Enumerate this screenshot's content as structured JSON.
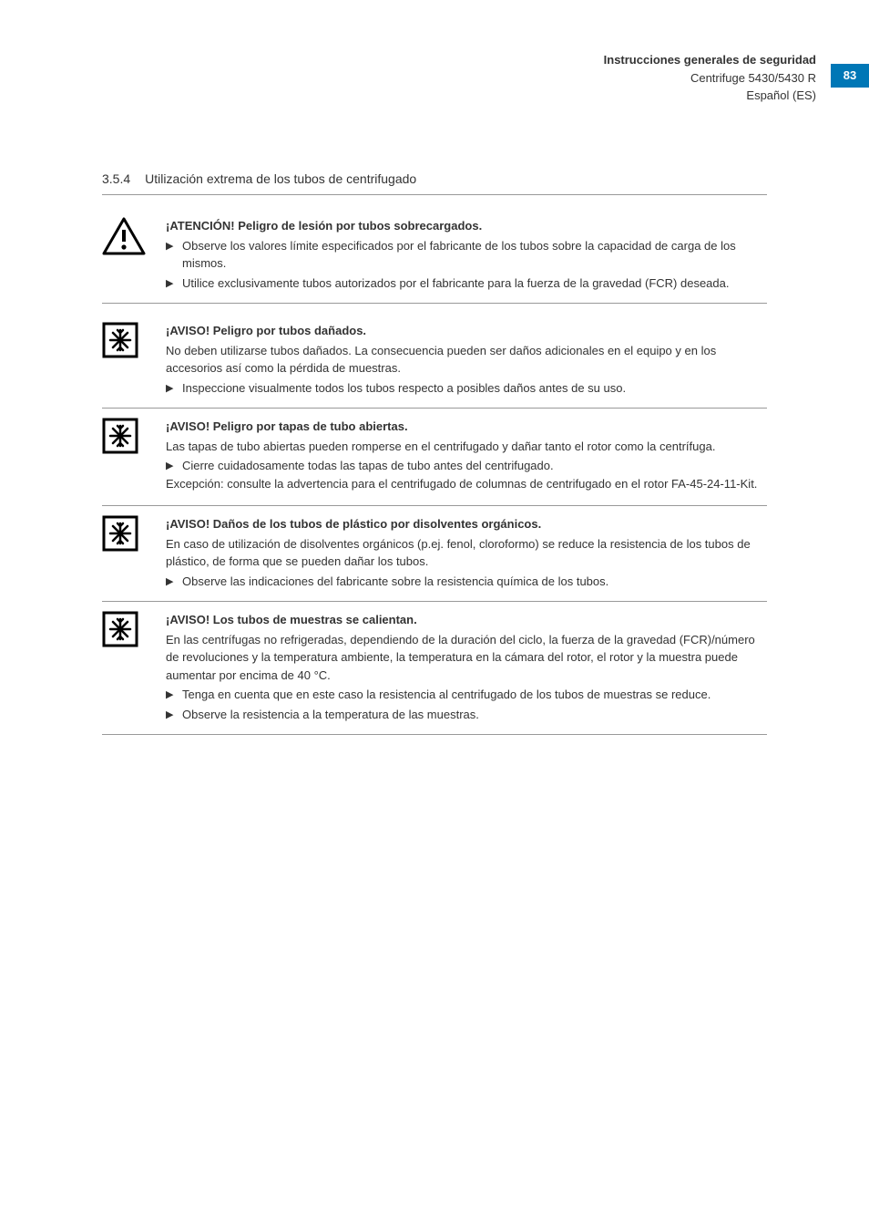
{
  "page_number": "83",
  "header": {
    "line1": "Instrucciones generales de seguridad",
    "line2": "Centrifuge 5430/5430 R",
    "line3": "Español (ES)"
  },
  "section": {
    "number": "3.5.4",
    "title": "Utilización extrema de los tubos de centrifugado"
  },
  "blocks": [
    {
      "icon": "warning-triangle",
      "title": "¡ATENCIÓN! Peligro de lesión por tubos sobrecargados.",
      "body": "",
      "bullets": [
        "Observe los valores límite especificados por el fabricante de los tubos sobre la capacidad de carga de los mismos.",
        "Utilice exclusivamente tubos autorizados por el fabricante para la fuerza de la gravedad (FCR) deseada."
      ],
      "after": ""
    },
    {
      "icon": "notice-snowflake",
      "title": "¡AVISO! Peligro por tubos dañados.",
      "body": "No deben utilizarse tubos dañados. La consecuencia pueden ser daños adicionales en el equipo y en los accesorios así como la pérdida de muestras.",
      "bullets": [
        "Inspeccione visualmente todos los tubos respecto a posibles daños antes de su uso."
      ],
      "after": ""
    },
    {
      "icon": "notice-snowflake",
      "title": "¡AVISO! Peligro por tapas de tubo abiertas.",
      "body": "Las tapas de tubo abiertas pueden romperse en el centrifugado y dañar tanto el rotor como la centrífuga.",
      "bullets": [
        "Cierre cuidadosamente todas las tapas de tubo antes del centrifugado."
      ],
      "after": "Excepción: consulte la advertencia para el centrifugado de columnas de centrifugado en el rotor FA-45-24-11-Kit."
    },
    {
      "icon": "notice-snowflake",
      "title": "¡AVISO! Daños de los tubos de plástico por disolventes orgánicos.",
      "body": "En caso de utilización de disolventes orgánicos (p.ej. fenol, cloroformo) se reduce la resistencia de los tubos de plástico, de forma que se pueden dañar los tubos.",
      "bullets": [
        "Observe las indicaciones del fabricante sobre la resistencia química de los tubos."
      ],
      "after": ""
    },
    {
      "icon": "notice-snowflake",
      "title": "¡AVISO! Los tubos de muestras se calientan.",
      "body": "En las centrífugas no refrigeradas, dependiendo de la duración del ciclo, la fuerza de la gravedad (FCR)/número de revoluciones  y la temperatura ambiente, la temperatura en la cámara del rotor, el rotor y la muestra puede aumentar por encima de 40 °C.",
      "bullets": [
        "Tenga en cuenta que en este caso la resistencia al centrifugado de los tubos de muestras se reduce.",
        "Observe la resistencia a la temperatura de las muestras."
      ],
      "after": ""
    }
  ],
  "colors": {
    "page_num_bg": "#0077b6",
    "text": "#333333",
    "rule": "#999999"
  }
}
